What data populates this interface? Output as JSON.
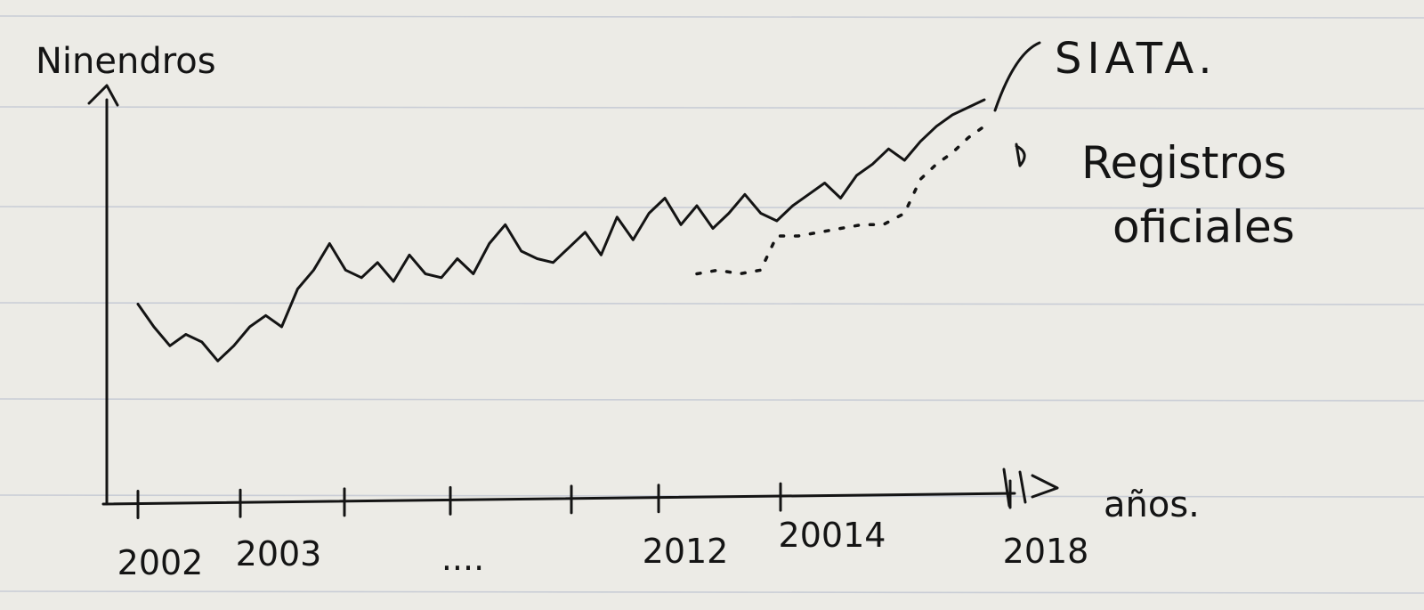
{
  "chart_data": {
    "type": "line",
    "ylabel": "Ninendros",
    "xlabel": "años.",
    "x_tick_labels": [
      "2002",
      "2003",
      "....",
      "2012",
      "20014",
      "2018"
    ],
    "xlim": [
      2002,
      2018
    ],
    "ylim": [
      0,
      10
    ],
    "grid": true,
    "series": [
      {
        "name": "SIATA.",
        "style": "solid",
        "x": [
          2002,
          2002.3,
          2002.6,
          2002.9,
          2003.2,
          2003.5,
          2003.8,
          2004.1,
          2004.4,
          2004.7,
          2005.0,
          2005.3,
          2005.6,
          2005.9,
          2006.2,
          2006.5,
          2006.8,
          2007.1,
          2007.4,
          2007.7,
          2008.0,
          2008.3,
          2008.6,
          2008.9,
          2009.2,
          2009.5,
          2009.8,
          2010.1,
          2010.4,
          2010.7,
          2011.0,
          2011.3,
          2011.6,
          2011.9,
          2012.2,
          2012.5,
          2012.8,
          2013.1,
          2013.4,
          2013.7,
          2014.0,
          2014.3,
          2014.6,
          2014.9,
          2015.2,
          2015.5,
          2015.8,
          2016.1,
          2016.4,
          2016.7,
          2017.0,
          2017.3,
          2017.6,
          2017.9
        ],
        "values": [
          4.2,
          3.6,
          3.1,
          3.4,
          3.2,
          2.7,
          3.1,
          3.6,
          3.9,
          3.6,
          4.6,
          5.1,
          5.8,
          5.1,
          4.9,
          5.3,
          4.8,
          5.5,
          5.0,
          4.9,
          5.4,
          5.0,
          5.8,
          6.3,
          5.6,
          5.4,
          5.3,
          5.7,
          6.1,
          5.5,
          6.5,
          5.9,
          6.6,
          7.0,
          6.3,
          6.8,
          6.2,
          6.6,
          7.1,
          6.6,
          6.4,
          6.8,
          7.1,
          7.4,
          7.0,
          7.6,
          7.9,
          8.3,
          8.0,
          8.5,
          8.9,
          9.2,
          9.4,
          9.6
        ]
      },
      {
        "name": "Registros oficiales",
        "style": "dotted",
        "x": [
          2012.5,
          2012.9,
          2013.3,
          2013.7,
          2014.0,
          2014.4,
          2014.8,
          2015.2,
          2015.6,
          2016.0,
          2016.4,
          2016.7,
          2017.0,
          2017.3,
          2017.6,
          2017.9
        ],
        "values": [
          5.0,
          5.1,
          5.0,
          5.1,
          6.0,
          6.0,
          6.1,
          6.2,
          6.3,
          6.3,
          6.6,
          7.5,
          7.9,
          8.2,
          8.6,
          8.9
        ]
      }
    ]
  }
}
